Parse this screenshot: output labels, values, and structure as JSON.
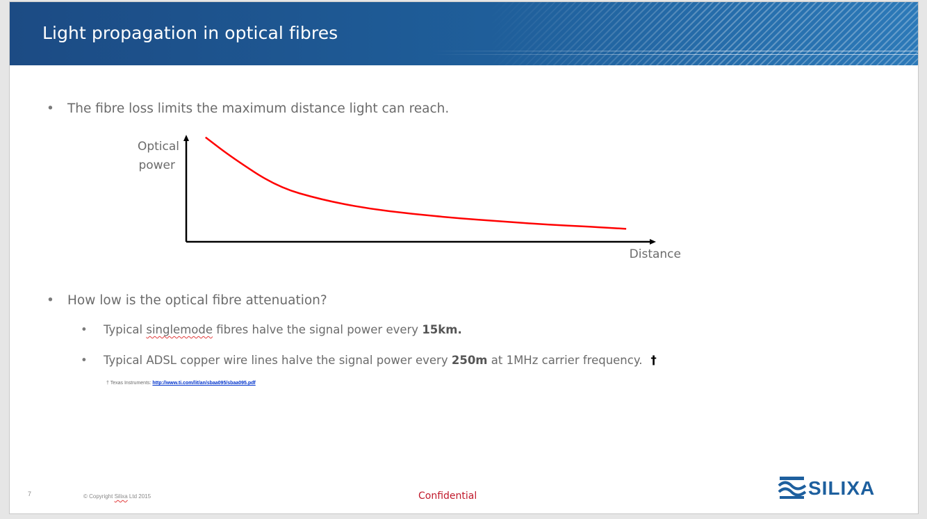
{
  "slide": {
    "title": "Light propagation in optical fibres",
    "bullet_marker": "•",
    "bullets": {
      "b1": "The fibre loss limits the maximum distance light can reach.",
      "b2": "How low is the optical fibre attenuation?",
      "sub1": {
        "pre": "Typical ",
        "underlined": "singlemode",
        "mid": " fibres halve the signal power every ",
        "bold": "15km."
      },
      "sub2": {
        "pre": "Typical ADSL copper wire lines halve the signal power every ",
        "bold": "250m",
        "post": " at 1MHz carrier frequency.",
        "dagger": "†"
      }
    },
    "footnote": {
      "prefix": "† Texas Instruments: ",
      "link": "http://www.ti.com/lit/an/sbaa095/sbaa095.pdf"
    },
    "footer": {
      "page_number": "7",
      "copyright_pre": "© Copyright ",
      "copyright_brand": "Silixa",
      "copyright_post": " Ltd  2015",
      "confidential": "Confidential",
      "logo_text": "SILIXA"
    }
  },
  "chart_data": {
    "type": "line",
    "ylabel_line1": "Optical",
    "ylabel_line2": "power",
    "xlabel": "Distance",
    "curve_color": "#ff0000",
    "series": [
      {
        "x": [
          0.04,
          0.1,
          0.2,
          0.3,
          0.4,
          0.5,
          0.6,
          0.7,
          0.8,
          0.9,
          0.98
        ],
        "y": [
          0.97,
          0.78,
          0.51,
          0.39,
          0.31,
          0.26,
          0.22,
          0.19,
          0.16,
          0.14,
          0.12
        ]
      }
    ]
  },
  "colors": {
    "header": "#1f5f9b",
    "body_text": "#6b6b6b",
    "confidential": "#c0182a",
    "logo": "#1d5f9e"
  }
}
